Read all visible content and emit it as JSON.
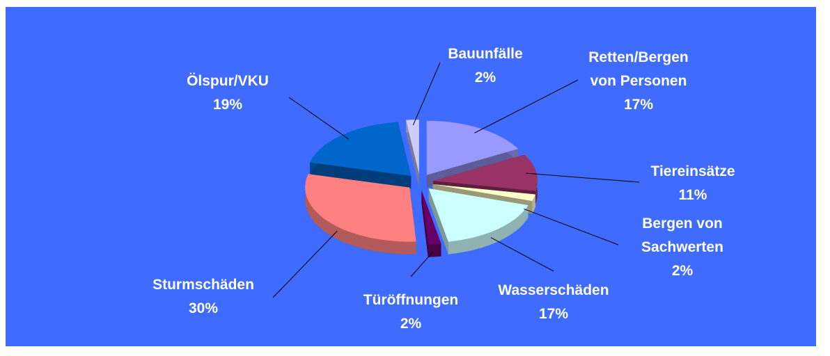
{
  "chart_data": {
    "type": "pie",
    "categories": [
      "Retten/Bergen\nvon Personen",
      "Tiereinsätze",
      "Bergen von\nSachwerten",
      "Wasserschäden",
      "Türöffnungen",
      "Sturmschäden",
      "Ölspur/VKU",
      "Bauunfälle"
    ],
    "values": [
      17,
      11,
      2,
      17,
      2,
      30,
      19,
      2
    ],
    "value_labels": [
      "17%",
      "11%",
      "2%",
      "17%",
      "2%",
      "30%",
      "19%",
      "2%"
    ],
    "colors": [
      "#9999ff",
      "#993366",
      "#ffffcc",
      "#ccffff",
      "#660066",
      "#ff8080",
      "#0066cc",
      "#ccccff"
    ]
  }
}
